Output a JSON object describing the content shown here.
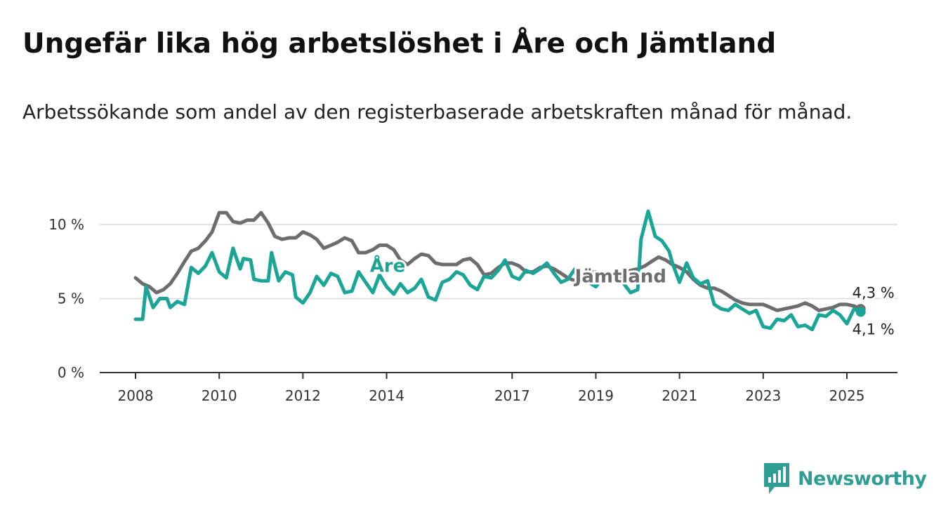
{
  "title": "Ungefär lika hög arbetslöshet i Åre och Jämtland",
  "subtitle": "Arbetssökande som andel av den registerbaserade arbetskraften månad för månad.",
  "brand": {
    "name": "Newsworthy"
  },
  "colors": {
    "are": "#1aa596",
    "jamtland": "#6d6d70",
    "grid": "#d9d9d9",
    "axis": "#333333",
    "brand": "#2f9d93"
  },
  "chart_data": {
    "type": "line",
    "title": "Ungefär lika hög arbetslöshet i Åre och Jämtland",
    "subtitle": "Arbetssökande som andel av den registerbaserade arbetskraften månad för månad.",
    "xlabel": "",
    "ylabel": "",
    "x_unit": "year (decimal)",
    "y_unit": "%",
    "xlim": [
      2008,
      2025.5
    ],
    "ylim": [
      0,
      10
    ],
    "x_ticks": [
      {
        "value": 2008,
        "label": "2008"
      },
      {
        "value": 2010,
        "label": "2010"
      },
      {
        "value": 2012,
        "label": "2012"
      },
      {
        "value": 2014,
        "label": "2014"
      },
      {
        "value": 2017,
        "label": "2017"
      },
      {
        "value": 2019,
        "label": "2019"
      },
      {
        "value": 2021,
        "label": "2021"
      },
      {
        "value": 2023,
        "label": "2023"
      },
      {
        "value": 2025,
        "label": "2025"
      }
    ],
    "y_ticks": [
      {
        "value": 0,
        "label": "0 %"
      },
      {
        "value": 5,
        "label": "5 %"
      },
      {
        "value": 10,
        "label": "10 %"
      }
    ],
    "grid": true,
    "series": [
      {
        "name": "Jämtland",
        "color": "#6d6d70",
        "label_position": [
          2018.5,
          6.1
        ],
        "end_label": "4,3 %",
        "points": [
          [
            2008.0,
            6.4
          ],
          [
            2008.17,
            6.0
          ],
          [
            2008.33,
            5.8
          ],
          [
            2008.5,
            5.4
          ],
          [
            2008.67,
            5.6
          ],
          [
            2008.83,
            6.0
          ],
          [
            2009.0,
            6.7
          ],
          [
            2009.17,
            7.5
          ],
          [
            2009.33,
            8.2
          ],
          [
            2009.5,
            8.4
          ],
          [
            2009.67,
            8.9
          ],
          [
            2009.83,
            9.5
          ],
          [
            2010.0,
            10.8
          ],
          [
            2010.17,
            10.8
          ],
          [
            2010.33,
            10.2
          ],
          [
            2010.5,
            10.1
          ],
          [
            2010.67,
            10.3
          ],
          [
            2010.83,
            10.3
          ],
          [
            2011.0,
            10.8
          ],
          [
            2011.17,
            10.1
          ],
          [
            2011.33,
            9.2
          ],
          [
            2011.5,
            9.0
          ],
          [
            2011.67,
            9.1
          ],
          [
            2011.83,
            9.1
          ],
          [
            2012.0,
            9.5
          ],
          [
            2012.17,
            9.3
          ],
          [
            2012.33,
            9.0
          ],
          [
            2012.5,
            8.4
          ],
          [
            2012.67,
            8.6
          ],
          [
            2012.83,
            8.8
          ],
          [
            2013.0,
            9.1
          ],
          [
            2013.17,
            8.9
          ],
          [
            2013.33,
            8.1
          ],
          [
            2013.5,
            8.1
          ],
          [
            2013.67,
            8.3
          ],
          [
            2013.83,
            8.6
          ],
          [
            2014.0,
            8.6
          ],
          [
            2014.17,
            8.3
          ],
          [
            2014.33,
            7.6
          ],
          [
            2014.5,
            7.3
          ],
          [
            2014.67,
            7.7
          ],
          [
            2014.83,
            8.0
          ],
          [
            2015.0,
            7.9
          ],
          [
            2015.17,
            7.4
          ],
          [
            2015.33,
            7.3
          ],
          [
            2015.5,
            7.3
          ],
          [
            2015.67,
            7.3
          ],
          [
            2015.83,
            7.6
          ],
          [
            2016.0,
            7.7
          ],
          [
            2016.17,
            7.3
          ],
          [
            2016.33,
            6.6
          ],
          [
            2016.5,
            6.7
          ],
          [
            2016.67,
            7.1
          ],
          [
            2016.83,
            7.4
          ],
          [
            2017.0,
            7.4
          ],
          [
            2017.17,
            7.2
          ],
          [
            2017.33,
            6.8
          ],
          [
            2017.5,
            6.8
          ],
          [
            2017.67,
            7.1
          ],
          [
            2017.83,
            7.2
          ],
          [
            2018.0,
            7.0
          ],
          [
            2018.17,
            6.7
          ],
          [
            2018.33,
            6.4
          ],
          [
            2018.5,
            6.2
          ],
          [
            2018.67,
            6.5
          ],
          [
            2018.83,
            6.8
          ],
          [
            2019.0,
            6.8
          ],
          [
            2019.17,
            6.5
          ],
          [
            2019.33,
            6.3
          ],
          [
            2019.5,
            6.3
          ],
          [
            2019.67,
            6.6
          ],
          [
            2019.83,
            6.9
          ],
          [
            2020.0,
            7.0
          ],
          [
            2020.17,
            7.2
          ],
          [
            2020.33,
            7.5
          ],
          [
            2020.5,
            7.8
          ],
          [
            2020.67,
            7.6
          ],
          [
            2020.83,
            7.3
          ],
          [
            2021.0,
            7.1
          ],
          [
            2021.17,
            6.8
          ],
          [
            2021.33,
            6.3
          ],
          [
            2021.5,
            5.9
          ],
          [
            2021.67,
            5.7
          ],
          [
            2021.83,
            5.7
          ],
          [
            2022.0,
            5.5
          ],
          [
            2022.17,
            5.2
          ],
          [
            2022.33,
            4.9
          ],
          [
            2022.5,
            4.7
          ],
          [
            2022.67,
            4.6
          ],
          [
            2022.83,
            4.6
          ],
          [
            2023.0,
            4.6
          ],
          [
            2023.17,
            4.4
          ],
          [
            2023.33,
            4.2
          ],
          [
            2023.5,
            4.3
          ],
          [
            2023.67,
            4.4
          ],
          [
            2023.83,
            4.5
          ],
          [
            2024.0,
            4.7
          ],
          [
            2024.17,
            4.5
          ],
          [
            2024.33,
            4.2
          ],
          [
            2024.5,
            4.3
          ],
          [
            2024.67,
            4.4
          ],
          [
            2024.83,
            4.6
          ],
          [
            2025.0,
            4.6
          ],
          [
            2025.17,
            4.5
          ],
          [
            2025.33,
            4.3
          ]
        ]
      },
      {
        "name": "Åre",
        "color": "#1aa596",
        "label_position": [
          2013.6,
          6.8
        ],
        "end_label": "4,1 %",
        "points": [
          [
            2008.0,
            3.6
          ],
          [
            2008.17,
            3.6
          ],
          [
            2008.25,
            5.8
          ],
          [
            2008.42,
            4.4
          ],
          [
            2008.58,
            5.0
          ],
          [
            2008.75,
            5.0
          ],
          [
            2008.83,
            4.4
          ],
          [
            2009.0,
            4.8
          ],
          [
            2009.17,
            4.6
          ],
          [
            2009.33,
            7.1
          ],
          [
            2009.5,
            6.7
          ],
          [
            2009.67,
            7.2
          ],
          [
            2009.83,
            8.1
          ],
          [
            2010.0,
            6.8
          ],
          [
            2010.17,
            6.4
          ],
          [
            2010.33,
            8.4
          ],
          [
            2010.5,
            7.0
          ],
          [
            2010.58,
            7.7
          ],
          [
            2010.75,
            7.6
          ],
          [
            2010.83,
            6.3
          ],
          [
            2011.0,
            6.2
          ],
          [
            2011.17,
            6.2
          ],
          [
            2011.25,
            8.1
          ],
          [
            2011.42,
            6.2
          ],
          [
            2011.58,
            6.8
          ],
          [
            2011.75,
            6.6
          ],
          [
            2011.83,
            5.1
          ],
          [
            2012.0,
            4.7
          ],
          [
            2012.17,
            5.4
          ],
          [
            2012.33,
            6.5
          ],
          [
            2012.5,
            5.9
          ],
          [
            2012.67,
            6.7
          ],
          [
            2012.83,
            6.5
          ],
          [
            2013.0,
            5.4
          ],
          [
            2013.17,
            5.5
          ],
          [
            2013.33,
            6.8
          ],
          [
            2013.5,
            6.1
          ],
          [
            2013.67,
            5.4
          ],
          [
            2013.83,
            6.6
          ],
          [
            2014.0,
            5.8
          ],
          [
            2014.17,
            5.3
          ],
          [
            2014.33,
            6.0
          ],
          [
            2014.5,
            5.4
          ],
          [
            2014.67,
            5.7
          ],
          [
            2014.83,
            6.3
          ],
          [
            2015.0,
            5.1
          ],
          [
            2015.17,
            4.9
          ],
          [
            2015.33,
            6.1
          ],
          [
            2015.5,
            6.3
          ],
          [
            2015.67,
            6.8
          ],
          [
            2015.83,
            6.6
          ],
          [
            2016.0,
            5.9
          ],
          [
            2016.17,
            5.6
          ],
          [
            2016.33,
            6.5
          ],
          [
            2016.5,
            6.4
          ],
          [
            2016.67,
            6.9
          ],
          [
            2016.83,
            7.6
          ],
          [
            2017.0,
            6.5
          ],
          [
            2017.17,
            6.3
          ],
          [
            2017.33,
            6.9
          ],
          [
            2017.5,
            6.7
          ],
          [
            2017.67,
            7.0
          ],
          [
            2017.83,
            7.4
          ],
          [
            2018.0,
            6.7
          ],
          [
            2018.17,
            6.1
          ],
          [
            2018.33,
            6.3
          ],
          [
            2018.5,
            7.0
          ],
          [
            2018.67,
            6.7
          ],
          [
            2018.83,
            6.1
          ],
          [
            2019.0,
            5.8
          ],
          [
            2019.17,
            6.4
          ],
          [
            2019.33,
            6.6
          ],
          [
            2019.5,
            6.4
          ],
          [
            2019.67,
            6.0
          ],
          [
            2019.83,
            5.4
          ],
          [
            2020.0,
            5.6
          ],
          [
            2020.08,
            9.0
          ],
          [
            2020.25,
            10.9
          ],
          [
            2020.42,
            9.2
          ],
          [
            2020.58,
            8.9
          ],
          [
            2020.75,
            8.2
          ],
          [
            2020.83,
            7.4
          ],
          [
            2021.0,
            6.1
          ],
          [
            2021.17,
            7.4
          ],
          [
            2021.33,
            6.4
          ],
          [
            2021.5,
            6.0
          ],
          [
            2021.67,
            6.2
          ],
          [
            2021.83,
            4.6
          ],
          [
            2022.0,
            4.3
          ],
          [
            2022.17,
            4.2
          ],
          [
            2022.33,
            4.6
          ],
          [
            2022.5,
            4.3
          ],
          [
            2022.67,
            4.0
          ],
          [
            2022.83,
            4.2
          ],
          [
            2023.0,
            3.1
          ],
          [
            2023.17,
            3.0
          ],
          [
            2023.33,
            3.6
          ],
          [
            2023.5,
            3.5
          ],
          [
            2023.67,
            3.9
          ],
          [
            2023.83,
            3.1
          ],
          [
            2024.0,
            3.2
          ],
          [
            2024.17,
            2.9
          ],
          [
            2024.33,
            3.9
          ],
          [
            2024.5,
            3.8
          ],
          [
            2024.67,
            4.2
          ],
          [
            2024.83,
            3.9
          ],
          [
            2025.0,
            3.3
          ],
          [
            2025.17,
            4.3
          ],
          [
            2025.33,
            4.1
          ]
        ]
      }
    ]
  }
}
